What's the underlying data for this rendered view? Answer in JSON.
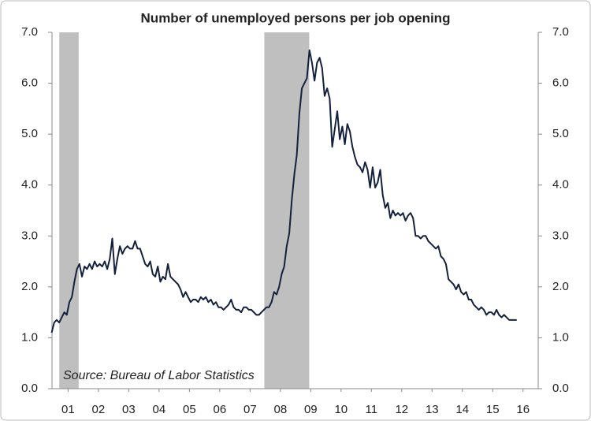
{
  "chart_data": {
    "type": "line",
    "title": "Number of unemployed persons per job opening",
    "annotation": "Source: Bureau of Labor Statistics",
    "x": [
      0.958,
      1.042,
      1.125,
      1.208,
      1.292,
      1.375,
      1.458,
      1.542,
      1.625,
      1.708,
      1.792,
      1.875,
      1.958,
      2.042,
      2.125,
      2.208,
      2.292,
      2.375,
      2.458,
      2.542,
      2.625,
      2.708,
      2.792,
      2.875,
      2.958,
      3.042,
      3.125,
      3.208,
      3.292,
      3.375,
      3.458,
      3.542,
      3.625,
      3.708,
      3.792,
      3.875,
      3.958,
      4.042,
      4.125,
      4.208,
      4.292,
      4.375,
      4.458,
      4.542,
      4.625,
      4.708,
      4.792,
      4.875,
      4.958,
      5.042,
      5.125,
      5.208,
      5.292,
      5.375,
      5.458,
      5.542,
      5.625,
      5.708,
      5.792,
      5.875,
      5.958,
      6.042,
      6.125,
      6.208,
      6.292,
      6.375,
      6.458,
      6.542,
      6.625,
      6.708,
      6.792,
      6.875,
      6.958,
      7.042,
      7.125,
      7.208,
      7.292,
      7.375,
      7.458,
      7.542,
      7.625,
      7.708,
      7.792,
      7.875,
      7.958,
      8.042,
      8.125,
      8.208,
      8.292,
      8.375,
      8.458,
      8.542,
      8.625,
      8.708,
      8.792,
      8.875,
      8.958,
      9.042,
      9.125,
      9.208,
      9.292,
      9.375,
      9.458,
      9.542,
      9.625,
      9.708,
      9.792,
      9.875,
      9.958,
      10.042,
      10.125,
      10.208,
      10.292,
      10.375,
      10.458,
      10.542,
      10.625,
      10.708,
      10.792,
      10.875,
      10.958,
      11.042,
      11.125,
      11.208,
      11.292,
      11.375,
      11.458,
      11.542,
      11.625,
      11.708,
      11.792,
      11.875,
      11.958,
      12.042,
      12.125,
      12.208,
      12.292,
      12.375,
      12.458,
      12.542,
      12.625,
      12.708,
      12.792,
      12.875,
      12.958,
      13.042,
      13.125,
      13.208,
      13.292,
      13.375,
      13.458,
      13.542,
      13.625,
      13.708,
      13.792,
      13.875,
      13.958,
      14.042,
      14.125,
      14.208,
      14.292,
      14.375,
      14.458,
      14.542,
      14.625,
      14.708,
      14.792,
      14.875,
      14.958,
      15.042,
      15.125,
      15.208,
      15.292,
      15.375,
      15.458,
      15.542,
      15.625,
      15.708,
      15.792,
      15.875,
      15.958,
      16.042,
      16.125,
      16.208,
      16.292
    ],
    "series": [
      {
        "color": "#14213d",
        "values": [
          1.1,
          1.3,
          1.35,
          1.3,
          1.4,
          1.5,
          1.45,
          1.7,
          1.8,
          2.1,
          2.35,
          2.45,
          2.2,
          2.4,
          2.35,
          2.45,
          2.35,
          2.5,
          2.4,
          2.45,
          2.4,
          2.5,
          2.35,
          2.55,
          2.95,
          2.25,
          2.55,
          2.8,
          2.65,
          2.75,
          2.8,
          2.75,
          2.75,
          2.9,
          2.75,
          2.75,
          2.6,
          2.45,
          2.4,
          2.5,
          2.25,
          2.2,
          2.4,
          2.1,
          2.2,
          2.15,
          2.45,
          2.2,
          2.15,
          2.1,
          2.05,
          1.95,
          1.8,
          1.9,
          1.8,
          1.7,
          1.75,
          1.75,
          1.7,
          1.8,
          1.75,
          1.8,
          1.7,
          1.75,
          1.65,
          1.7,
          1.6,
          1.6,
          1.55,
          1.6,
          1.65,
          1.75,
          1.6,
          1.55,
          1.55,
          1.5,
          1.6,
          1.6,
          1.55,
          1.55,
          1.5,
          1.45,
          1.45,
          1.5,
          1.55,
          1.6,
          1.6,
          1.7,
          1.9,
          1.85,
          2.0,
          2.25,
          2.4,
          2.8,
          3.05,
          3.7,
          4.2,
          4.6,
          5.4,
          5.9,
          6.0,
          6.1,
          6.65,
          6.4,
          6.05,
          6.4,
          6.5,
          6.3,
          5.75,
          5.9,
          5.7,
          4.75,
          5.1,
          5.45,
          4.9,
          5.15,
          4.8,
          5.2,
          5.05,
          4.75,
          4.55,
          4.4,
          4.35,
          4.25,
          4.45,
          4.3,
          3.95,
          4.35,
          3.95,
          4.05,
          4.3,
          3.8,
          3.55,
          3.65,
          3.35,
          3.5,
          3.4,
          3.45,
          3.4,
          3.45,
          3.3,
          3.4,
          3.45,
          3.35,
          3.0,
          3.0,
          2.95,
          3.0,
          3.0,
          2.9,
          2.85,
          2.8,
          2.75,
          2.8,
          2.6,
          2.55,
          2.45,
          2.15,
          2.1,
          2.05,
          1.95,
          2.05,
          1.9,
          1.85,
          1.9,
          1.75,
          1.75,
          1.65,
          1.6,
          1.55,
          1.6,
          1.55,
          1.45,
          1.5,
          1.5,
          1.45,
          1.55,
          1.45,
          1.4,
          1.45,
          1.4,
          1.35,
          1.35,
          1.35,
          1.35
        ]
      }
    ],
    "shaded_ranges": [
      [
        1.21,
        1.85
      ],
      [
        7.97,
        9.45
      ]
    ],
    "shade_color": "#bfbfbf",
    "xlim": [
      0.97,
      17.0
    ],
    "xticks": [
      {
        "value": 1.5,
        "label": "01"
      },
      {
        "value": 2.5,
        "label": "02"
      },
      {
        "value": 3.5,
        "label": "03"
      },
      {
        "value": 4.5,
        "label": "04"
      },
      {
        "value": 5.5,
        "label": "05"
      },
      {
        "value": 6.5,
        "label": "06"
      },
      {
        "value": 7.5,
        "label": "07"
      },
      {
        "value": 8.5,
        "label": "08"
      },
      {
        "value": 9.5,
        "label": "09"
      },
      {
        "value": 10.5,
        "label": "10"
      },
      {
        "value": 11.5,
        "label": "11"
      },
      {
        "value": 12.5,
        "label": "12"
      },
      {
        "value": 13.5,
        "label": "13"
      },
      {
        "value": 14.5,
        "label": "14"
      },
      {
        "value": 15.5,
        "label": "15"
      },
      {
        "value": 16.5,
        "label": "16"
      }
    ],
    "ylim": [
      0,
      7
    ],
    "yticks": [
      {
        "value": 0,
        "label": "0.0"
      },
      {
        "value": 1,
        "label": "1.0"
      },
      {
        "value": 2,
        "label": "2.0"
      },
      {
        "value": 3,
        "label": "3.0"
      },
      {
        "value": 4,
        "label": "4.0"
      },
      {
        "value": 5,
        "label": "5.0"
      },
      {
        "value": 6,
        "label": "6.0"
      },
      {
        "value": 7,
        "label": "7.0"
      }
    ],
    "y2lim": [
      0,
      7
    ],
    "y2ticks": [
      {
        "value": 0,
        "label": "0.0"
      },
      {
        "value": 1,
        "label": "1.0"
      },
      {
        "value": 2,
        "label": "2.0"
      },
      {
        "value": 3,
        "label": "3.0"
      },
      {
        "value": 4,
        "label": "4.0"
      },
      {
        "value": 5,
        "label": "5.0"
      },
      {
        "value": 6,
        "label": "6.0"
      },
      {
        "value": 7,
        "label": "7.0"
      }
    ]
  }
}
